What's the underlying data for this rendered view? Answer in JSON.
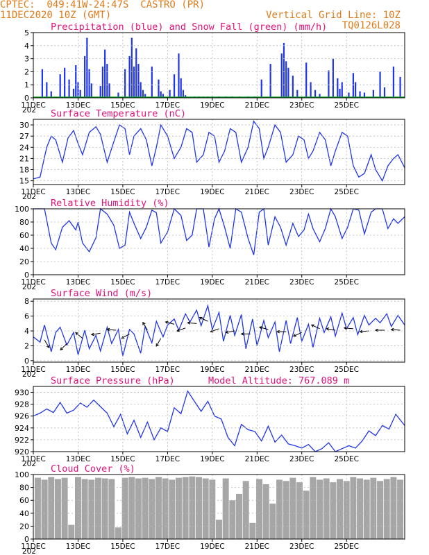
{
  "header": {
    "line1": "CPTEC:  049:41W-24:47S  CASTRO (PR)",
    "line2_left": "11DEC2020 10Z (GMT)",
    "line2_right": "Vertical Grid Line: 10Z",
    "line3_right": "TQ0126L028"
  },
  "x_ticks": [
    "11DEC",
    "13DEC",
    "15DEC",
    "17DEC",
    "19DEC",
    "21DEC",
    "23DEC",
    "25DEC"
  ],
  "year_fragment": "202",
  "chart_data": [
    {
      "type": "bar",
      "title": "Precipitation (blue) and Snow Fall (green) (mm/h)",
      "ylim": [
        0,
        5
      ],
      "yticks": [
        0,
        1,
        2,
        3,
        4,
        5
      ],
      "series": [
        {
          "name": "Precipitation",
          "color": "#1f35e8",
          "x": [
            0.4,
            0.6,
            0.8,
            1.2,
            1.4,
            1.6,
            1.8,
            1.9,
            2.0,
            2.1,
            2.3,
            2.4,
            2.5,
            2.6,
            3.0,
            3.1,
            3.2,
            3.3,
            3.4,
            3.8,
            4.1,
            4.3,
            4.4,
            4.5,
            4.6,
            4.7,
            4.8,
            4.9,
            5.0,
            5.3,
            5.6,
            5.7,
            5.8,
            6.1,
            6.3,
            6.5,
            6.6,
            6.7,
            6.8,
            7.2,
            7.4,
            7.6,
            7.8,
            8.0,
            8.3,
            8.6,
            8.9,
            9.2,
            9.6,
            9.9,
            10.2,
            10.6,
            11.1,
            11.2,
            11.3,
            11.4,
            11.6,
            11.8,
            12.2,
            12.4,
            12.6,
            12.8,
            13.2,
            13.4,
            13.6,
            13.7,
            13.8,
            14.1,
            14.3,
            14.4,
            14.6,
            14.8,
            15.2,
            15.5,
            15.7,
            16.1,
            16.4
          ],
          "values": [
            2.2,
            1.2,
            0.5,
            1.8,
            2.3,
            1.4,
            0.7,
            2.5,
            1.2,
            0.6,
            3.2,
            4.6,
            2.2,
            1.1,
            0.9,
            2.4,
            3.7,
            2.6,
            1.1,
            0.4,
            2.2,
            3.2,
            4.6,
            2.4,
            3.8,
            2.6,
            1.2,
            0.6,
            0.3,
            2.4,
            1.4,
            0.5,
            0.3,
            0.6,
            1.8,
            3.4,
            1.5,
            0.6,
            0.2,
            0.1,
            0.1,
            0.1,
            0.1,
            0.1,
            0.1,
            0.1,
            0.1,
            0.1,
            0.1,
            0.1,
            1.4,
            2.6,
            3.4,
            4.2,
            2.8,
            2.3,
            1.7,
            0.6,
            2.7,
            1.2,
            0.6,
            0.3,
            2.1,
            3.0,
            1.5,
            0.7,
            1.2,
            0.4,
            1.9,
            1.2,
            0.5,
            0.4,
            0.6,
            2.0,
            0.8,
            2.4,
            1.6
          ]
        },
        {
          "name": "Snow Fall",
          "color": "#14a52f",
          "x": [
            0,
            16.6
          ],
          "values": [
            0,
            0
          ]
        }
      ]
    },
    {
      "type": "line",
      "title": "Surface Temperature (nC)",
      "ylim": [
        14,
        31.5
      ],
      "yticks": [
        15,
        18,
        21,
        24,
        27,
        30
      ],
      "series": [
        {
          "name": "Temperature",
          "color": "#1f35e8",
          "x": [
            0,
            0.3,
            0.6,
            0.8,
            1.0,
            1.3,
            1.55,
            1.8,
            2.0,
            2.2,
            2.5,
            2.8,
            3.0,
            3.3,
            3.6,
            3.85,
            4.1,
            4.3,
            4.5,
            4.8,
            5.05,
            5.3,
            5.5,
            5.7,
            6.0,
            6.3,
            6.6,
            6.85,
            7.1,
            7.3,
            7.6,
            7.85,
            8.1,
            8.3,
            8.55,
            8.8,
            9.05,
            9.3,
            9.6,
            9.85,
            10.1,
            10.3,
            10.5,
            10.8,
            11.05,
            11.3,
            11.6,
            11.85,
            12.1,
            12.3,
            12.5,
            12.8,
            13.05,
            13.3,
            13.5,
            13.8,
            14.05,
            14.3,
            14.55,
            14.8,
            15.1,
            15.3,
            15.6,
            15.85,
            16.1,
            16.3,
            16.6
          ],
          "values": [
            15.5,
            16,
            24,
            27,
            26,
            20,
            26.5,
            28.5,
            25,
            22,
            28,
            29.5,
            27.5,
            20,
            25.5,
            30,
            29,
            22,
            27,
            29,
            26,
            19,
            24,
            30,
            27,
            21,
            24,
            29,
            28,
            20,
            22,
            28,
            27,
            20,
            23,
            29,
            28,
            20,
            24,
            31,
            29,
            21,
            24,
            30,
            28,
            20,
            22,
            27,
            26,
            21,
            23,
            28,
            26,
            19,
            23,
            28,
            27,
            19,
            16,
            17,
            22,
            18,
            15,
            19,
            21,
            22,
            18.5
          ]
        }
      ]
    },
    {
      "type": "line",
      "title": "Relative Humidity (%)",
      "ylim": [
        0,
        100
      ],
      "yticks": [
        0,
        20,
        40,
        60,
        80,
        100
      ],
      "series": [
        {
          "name": "Humidity",
          "color": "#1f35e8",
          "x": [
            0,
            0.3,
            0.5,
            0.8,
            1.0,
            1.3,
            1.6,
            1.9,
            2.0,
            2.2,
            2.5,
            2.8,
            3.0,
            3.3,
            3.6,
            3.85,
            4.1,
            4.3,
            4.5,
            4.8,
            5.05,
            5.3,
            5.5,
            5.7,
            6.0,
            6.3,
            6.6,
            6.85,
            7.1,
            7.3,
            7.6,
            7.85,
            8.1,
            8.3,
            8.55,
            8.8,
            9.05,
            9.3,
            9.6,
            9.85,
            10.1,
            10.3,
            10.5,
            10.8,
            11.05,
            11.3,
            11.6,
            11.85,
            12.1,
            12.3,
            12.5,
            12.8,
            13.05,
            13.3,
            13.5,
            13.8,
            14.05,
            14.3,
            14.55,
            14.8,
            15.1,
            15.3,
            15.6,
            15.85,
            16.1,
            16.3,
            16.6
          ],
          "values": [
            100,
            100,
            100,
            48,
            38,
            72,
            82,
            68,
            80,
            48,
            35,
            56,
            100,
            92,
            75,
            40,
            45,
            95,
            78,
            55,
            72,
            98,
            94,
            48,
            65,
            100,
            90,
            52,
            60,
            100,
            100,
            42,
            85,
            100,
            72,
            40,
            100,
            95,
            55,
            30,
            95,
            100,
            45,
            88,
            72,
            45,
            78,
            58,
            68,
            92,
            70,
            50,
            70,
            100,
            88,
            55,
            72,
            100,
            98,
            62,
            95,
            100,
            100,
            70,
            85,
            78,
            88
          ]
        }
      ]
    },
    {
      "type": "line",
      "title": "Surface Wind (m/s)",
      "ylim": [
        -0.2,
        8.3
      ],
      "yticks": [
        0,
        2,
        4,
        6,
        8
      ],
      "series": [
        {
          "name": "Wind speed",
          "color": "#1f35e8",
          "x": [
            0,
            0.3,
            0.5,
            0.8,
            1.0,
            1.2,
            1.5,
            1.8,
            2.0,
            2.3,
            2.5,
            2.8,
            3.0,
            3.3,
            3.5,
            3.8,
            4.0,
            4.3,
            4.5,
            4.8,
            5.0,
            5.3,
            5.5,
            5.8,
            6.0,
            6.3,
            6.5,
            6.8,
            7.0,
            7.3,
            7.5,
            7.8,
            8.0,
            8.3,
            8.5,
            8.8,
            9.0,
            9.3,
            9.5,
            9.8,
            10.0,
            10.3,
            10.5,
            10.8,
            11.0,
            11.3,
            11.5,
            11.8,
            12.0,
            12.3,
            12.5,
            12.8,
            13.0,
            13.3,
            13.5,
            13.8,
            14.0,
            14.3,
            14.5,
            14.8,
            15.0,
            15.3,
            15.5,
            15.8,
            16.0,
            16.3,
            16.6
          ],
          "values": [
            3.2,
            2.5,
            4.8,
            1.2,
            3.8,
            4.5,
            2.1,
            3.8,
            0.8,
            4.1,
            1.6,
            3.4,
            1.3,
            4.5,
            2.3,
            4.2,
            0.6,
            4.2,
            3.6,
            1.0,
            4.6,
            2.4,
            5.3,
            3.2,
            4.8,
            5.6,
            4.1,
            6.3,
            5.2,
            6.8,
            4.7,
            7.4,
            4.2,
            6.5,
            2.6,
            6.1,
            3.4,
            6.2,
            1.6,
            5.6,
            2.0,
            5.4,
            3.1,
            5.2,
            1.2,
            5.4,
            2.3,
            5.8,
            2.6,
            4.9,
            1.8,
            5.7,
            3.8,
            5.9,
            3.3,
            6.4,
            4.3,
            5.8,
            3.5,
            6.1,
            4.8,
            5.7,
            5.1,
            6.3,
            4.6,
            6.1,
            4.8
          ]
        }
      ]
    },
    {
      "type": "line",
      "title": "Surface Pressure (hPa)",
      "annotation": "Model Altitude: 767.089 m",
      "ylim": [
        920,
        931
      ],
      "yticks": [
        920,
        922,
        924,
        926,
        928,
        930
      ],
      "series": [
        {
          "name": "Pressure",
          "color": "#1f35e8",
          "x": [
            0,
            0.3,
            0.6,
            0.9,
            1.2,
            1.5,
            1.8,
            2.1,
            2.4,
            2.7,
            3.0,
            3.3,
            3.6,
            3.9,
            4.2,
            4.5,
            4.8,
            5.1,
            5.4,
            5.7,
            6.0,
            6.3,
            6.6,
            6.9,
            7.2,
            7.5,
            7.8,
            8.1,
            8.4,
            8.7,
            9.0,
            9.3,
            9.6,
            9.9,
            10.2,
            10.5,
            10.8,
            11.1,
            11.4,
            11.7,
            12.0,
            12.3,
            12.6,
            12.9,
            13.2,
            13.5,
            13.8,
            14.1,
            14.4,
            14.7,
            15.0,
            15.3,
            15.6,
            15.9,
            16.2,
            16.6
          ],
          "values": [
            926,
            926.5,
            927.2,
            926.6,
            928.3,
            926.5,
            927,
            928.2,
            927.5,
            928.7,
            927.6,
            926.5,
            924.2,
            926.3,
            923,
            925.3,
            922.4,
            925,
            922,
            924,
            923.4,
            927.4,
            926.4,
            930.2,
            928.5,
            926.8,
            928.5,
            926,
            925.5,
            922.4,
            921,
            924.6,
            923.7,
            923.4,
            921.8,
            924.3,
            921.6,
            922.8,
            921.3,
            921,
            920.6,
            921.2,
            920,
            920.5,
            921.5,
            920,
            920.5,
            921,
            920.6,
            921.8,
            923.5,
            922.7,
            924.4,
            923.8,
            926.3,
            924.4
          ]
        }
      ]
    },
    {
      "type": "bar",
      "title": "Cloud Cover (%)",
      "ylim": [
        0,
        100
      ],
      "yticks": [
        0,
        20,
        40,
        60,
        80,
        100
      ],
      "series": [
        {
          "name": "Cloud cover",
          "color": "#a6a6a6",
          "x": [
            0.2,
            0.5,
            0.8,
            1.1,
            1.4,
            1.7,
            2.0,
            2.3,
            2.6,
            2.9,
            3.2,
            3.5,
            3.8,
            4.1,
            4.4,
            4.7,
            5.0,
            5.3,
            5.6,
            5.9,
            6.2,
            6.5,
            6.8,
            7.1,
            7.4,
            7.7,
            8.0,
            8.3,
            8.6,
            8.9,
            9.2,
            9.5,
            9.8,
            10.1,
            10.4,
            10.7,
            11.0,
            11.3,
            11.6,
            11.9,
            12.2,
            12.5,
            12.8,
            13.1,
            13.4,
            13.7,
            14.0,
            14.3,
            14.6,
            14.9,
            15.2,
            15.5,
            15.8,
            16.1,
            16.4
          ],
          "values": [
            95,
            92,
            96,
            93,
            95,
            22,
            96,
            93,
            92,
            95,
            94,
            93,
            18,
            95,
            96,
            94,
            95,
            93,
            96,
            94,
            92,
            95,
            96,
            97,
            96,
            94,
            92,
            30,
            94,
            60,
            70,
            90,
            25,
            93,
            85,
            55,
            92,
            90,
            95,
            88,
            75,
            96,
            92,
            94,
            88,
            93,
            90,
            96,
            94,
            92,
            95,
            90,
            93,
            96,
            92
          ]
        }
      ]
    }
  ],
  "wind_arrows": {
    "x": [
      0.5,
      1.5,
      2.2,
      3.0,
      3.7,
      4.3,
      5.1,
      5.7,
      6.3,
      6.8,
      7.3,
      7.8,
      8.3,
      9.0,
      9.7,
      10.5,
      11.3,
      12.0,
      12.8,
      13.5,
      14.3,
      15.0,
      15.7,
      16.4
    ],
    "speed": [
      2.8,
      2.3,
      3.0,
      3.7,
      4.1,
      3.6,
      4.1,
      3.0,
      4.9,
      4.4,
      5.0,
      5.3,
      4.3,
      4.0,
      3.6,
      4.2,
      3.9,
      3.8,
      4.3,
      4.1,
      4.3,
      4.0,
      4.1,
      4.1
    ],
    "angle_deg": [
      300,
      225,
      140,
      190,
      175,
      210,
      120,
      240,
      165,
      200,
      175,
      155,
      200,
      190,
      180,
      165,
      180,
      205,
      155,
      170,
      175,
      185,
      180,
      175
    ]
  }
}
